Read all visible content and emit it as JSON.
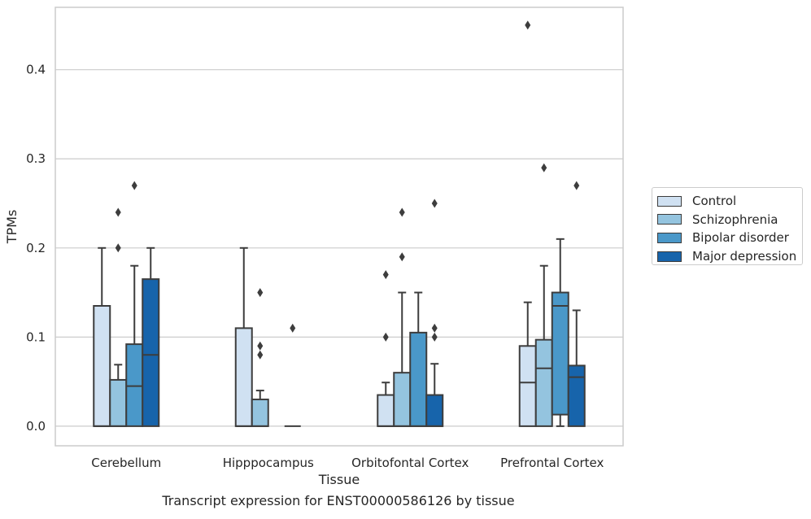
{
  "chart_data": {
    "type": "box",
    "title": "",
    "xlabel": "Tissue",
    "ylabel": "TPMs",
    "caption": "Transcript expression for ENST00000586126 by tissue",
    "ylim": [
      -0.022,
      0.47
    ],
    "yticks": [
      "0.0",
      "0.1",
      "0.2",
      "0.3",
      "0.4"
    ],
    "categories": [
      "Cerebellum",
      "Hipppocampus",
      "Orbitofontal Cortex",
      "Prefrontal Cortex"
    ],
    "grid": "horizontal",
    "legend_position": "right",
    "series": [
      {
        "name": "Control",
        "color": "#d0e1f2",
        "boxes": [
          {
            "q1": 0.0,
            "median": 0.0,
            "q3": 0.135,
            "whisker_low": 0.0,
            "whisker_high": 0.2,
            "outliers": []
          },
          {
            "q1": 0.0,
            "median": 0.0,
            "q3": 0.11,
            "whisker_low": 0.0,
            "whisker_high": 0.2,
            "outliers": []
          },
          {
            "q1": 0.0,
            "median": 0.0,
            "q3": 0.035,
            "whisker_low": 0.0,
            "whisker_high": 0.049,
            "outliers": [
              0.1,
              0.17
            ]
          },
          {
            "q1": 0.0,
            "median": 0.049,
            "q3": 0.09,
            "whisker_low": 0.0,
            "whisker_high": 0.139,
            "outliers": [
              0.45
            ]
          }
        ]
      },
      {
        "name": "Schizophrenia",
        "color": "#94c4df",
        "boxes": [
          {
            "q1": 0.0,
            "median": 0.0,
            "q3": 0.052,
            "whisker_low": 0.0,
            "whisker_high": 0.069,
            "outliers": [
              0.2,
              0.24
            ]
          },
          {
            "q1": 0.0,
            "median": 0.0,
            "q3": 0.03,
            "whisker_low": 0.0,
            "whisker_high": 0.04,
            "outliers": [
              0.08,
              0.09,
              0.15
            ]
          },
          {
            "q1": 0.0,
            "median": 0.0,
            "q3": 0.06,
            "whisker_low": 0.0,
            "whisker_high": 0.15,
            "outliers": [
              0.19,
              0.24
            ]
          },
          {
            "q1": 0.0,
            "median": 0.065,
            "q3": 0.097,
            "whisker_low": 0.0,
            "whisker_high": 0.18,
            "outliers": [
              0.29
            ]
          }
        ]
      },
      {
        "name": "Bipolar disorder",
        "color": "#4a98c9",
        "boxes": [
          {
            "q1": 0.0,
            "median": 0.045,
            "q3": 0.092,
            "whisker_low": 0.0,
            "whisker_high": 0.18,
            "outliers": [
              0.27
            ]
          },
          null,
          {
            "q1": 0.0,
            "median": 0.0,
            "q3": 0.105,
            "whisker_low": 0.0,
            "whisker_high": 0.15,
            "outliers": []
          },
          {
            "q1": 0.013,
            "median": 0.135,
            "q3": 0.15,
            "whisker_low": 0.0,
            "whisker_high": 0.21,
            "outliers": []
          }
        ]
      },
      {
        "name": "Major depression",
        "color": "#1764ab",
        "boxes": [
          {
            "q1": 0.0,
            "median": 0.08,
            "q3": 0.165,
            "whisker_low": 0.0,
            "whisker_high": 0.2,
            "outliers": []
          },
          {
            "q1": 0.0,
            "median": 0.0,
            "q3": 0.0,
            "whisker_low": 0.0,
            "whisker_high": 0.0,
            "outliers": [
              0.11
            ]
          },
          {
            "q1": 0.0,
            "median": 0.0,
            "q3": 0.035,
            "whisker_low": 0.0,
            "whisker_high": 0.07,
            "outliers": [
              0.1,
              0.11,
              0.25
            ]
          },
          {
            "q1": 0.0,
            "median": 0.055,
            "q3": 0.068,
            "whisker_low": 0.0,
            "whisker_high": 0.13,
            "outliers": [
              0.27
            ]
          }
        ]
      }
    ]
  }
}
